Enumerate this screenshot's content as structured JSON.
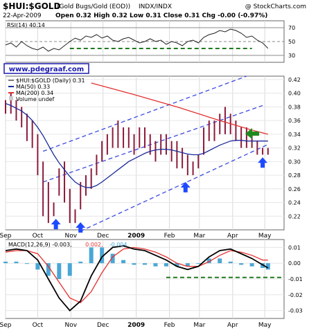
{
  "header": {
    "symbol": "$HUI:$GOLD",
    "description": "(Gold Bugs/Gold (EOD))",
    "exchange": "INDX/INDX",
    "copyright": "@ StockCharts.com",
    "date": "22-Apr-2009",
    "ohlc": "Open 0.32  High 0.32  Low 0.31  Close 0.31  Chg -0.00 (-0.97%)"
  },
  "watermark": "www.pdegraaf.com",
  "chart_data": [
    {
      "type": "line",
      "panel": "rsi",
      "title": "RSI(14) 40.14",
      "ylim": [
        20,
        80
      ],
      "yticks": [
        30,
        50,
        70
      ],
      "levels": [
        30,
        50,
        70
      ],
      "x": [
        0,
        5,
        10,
        15,
        20,
        25,
        30,
        35,
        40,
        45,
        50,
        55,
        60,
        65,
        70,
        75,
        80,
        85,
        90,
        95,
        100,
        105,
        110,
        115,
        120,
        125,
        130,
        135,
        140,
        145,
        150,
        155,
        160,
        165,
        170,
        175,
        180,
        185,
        190,
        195,
        200,
        205,
        210,
        215,
        220,
        225,
        230,
        235,
        240,
        245
      ],
      "values": [
        45,
        48,
        42,
        50,
        44,
        40,
        38,
        42,
        36,
        40,
        38,
        44,
        50,
        55,
        52,
        58,
        56,
        60,
        55,
        58,
        52,
        50,
        54,
        56,
        52,
        48,
        50,
        54,
        50,
        52,
        46,
        50,
        48,
        44,
        50,
        52,
        48,
        56,
        60,
        62,
        66,
        64,
        68,
        66,
        62,
        56,
        58,
        52,
        48,
        40.14
      ],
      "support_value": 40
    },
    {
      "type": "line",
      "panel": "price",
      "title": "$HUI:$GOLD (Daily) 0.31",
      "ylim": [
        0.2,
        0.425
      ],
      "yticks": [
        0.22,
        0.24,
        0.26,
        0.28,
        0.3,
        0.32,
        0.34,
        0.36,
        0.38,
        0.4,
        0.42
      ],
      "xtick_labels": [
        "Sep",
        "Oct",
        "Nov",
        "Dec",
        "2009",
        "Feb",
        "Mar",
        "Apr",
        "May"
      ],
      "xtick_positions": [
        0,
        30,
        61,
        91,
        122,
        153,
        181,
        212,
        242
      ],
      "legend": [
        "$HUI:$GOLD (Daily) 0.31",
        "MA(50) 0.33",
        "MA(200) 0.34",
        "Volume undef"
      ],
      "price_x": [
        0,
        5,
        10,
        15,
        20,
        25,
        30,
        35,
        40,
        45,
        50,
        55,
        60,
        65,
        70,
        75,
        80,
        85,
        90,
        95,
        100,
        105,
        110,
        115,
        120,
        125,
        130,
        135,
        140,
        145,
        150,
        155,
        160,
        165,
        170,
        175,
        180,
        185,
        190,
        195,
        200,
        205,
        210,
        215,
        220,
        225,
        230,
        235,
        240,
        245
      ],
      "price_high": [
        0.39,
        0.4,
        0.39,
        0.38,
        0.37,
        0.36,
        0.34,
        0.3,
        0.27,
        0.24,
        0.29,
        0.3,
        0.26,
        0.23,
        0.27,
        0.28,
        0.29,
        0.31,
        0.33,
        0.34,
        0.35,
        0.36,
        0.35,
        0.35,
        0.34,
        0.35,
        0.35,
        0.34,
        0.33,
        0.34,
        0.34,
        0.33,
        0.33,
        0.32,
        0.31,
        0.3,
        0.31,
        0.35,
        0.36,
        0.36,
        0.37,
        0.38,
        0.37,
        0.36,
        0.35,
        0.35,
        0.34,
        0.33,
        0.32,
        0.32
      ],
      "price_low": [
        0.37,
        0.37,
        0.36,
        0.35,
        0.33,
        0.32,
        0.28,
        0.22,
        0.21,
        0.22,
        0.25,
        0.24,
        0.21,
        0.21,
        0.23,
        0.25,
        0.26,
        0.28,
        0.3,
        0.31,
        0.32,
        0.32,
        0.32,
        0.32,
        0.31,
        0.32,
        0.32,
        0.31,
        0.3,
        0.31,
        0.31,
        0.3,
        0.29,
        0.29,
        0.28,
        0.28,
        0.29,
        0.31,
        0.33,
        0.33,
        0.34,
        0.34,
        0.34,
        0.33,
        0.32,
        0.32,
        0.32,
        0.31,
        0.31,
        0.31
      ],
      "ma50": [
        0.385,
        0.382,
        0.378,
        0.374,
        0.368,
        0.36,
        0.35,
        0.338,
        0.324,
        0.31,
        0.298,
        0.288,
        0.278,
        0.27,
        0.265,
        0.262,
        0.262,
        0.265,
        0.27,
        0.276,
        0.282,
        0.288,
        0.294,
        0.3,
        0.304,
        0.308,
        0.312,
        0.315,
        0.317,
        0.318,
        0.318,
        0.317,
        0.315,
        0.313,
        0.311,
        0.31,
        0.31,
        0.312,
        0.316,
        0.32,
        0.324,
        0.327,
        0.33,
        0.331,
        0.331,
        0.33,
        0.33,
        0.33,
        0.33,
        0.33
      ],
      "ma200_x": [
        80,
        120,
        160,
        200,
        230,
        245
      ],
      "ma200": [
        0.415,
        0.398,
        0.38,
        0.36,
        0.346,
        0.34
      ],
      "channel_upper": {
        "x": [
          35,
          225
        ],
        "y": [
          0.315,
          0.425
        ]
      },
      "channel_middle": {
        "x": [
          35,
          240
        ],
        "y": [
          0.27,
          0.382
        ]
      },
      "channel_lower": {
        "x": [
          70,
          245
        ],
        "y": [
          0.198,
          0.325
        ]
      }
    },
    {
      "type": "bar",
      "panel": "macd",
      "title": "MACD(12,26,9) -0.003, 0.002, -0.004",
      "legend": [
        "MACD(12,26,9) -0.003,",
        "0.002,",
        "-0.004"
      ],
      "ylim": [
        -0.035,
        0.015
      ],
      "yticks": [
        0.01,
        0.0,
        -0.01,
        -0.02,
        -0.03
      ],
      "xtick_labels": [
        "Sep",
        "Oct",
        "Nov",
        "Dec",
        "2009",
        "Feb",
        "Mar",
        "Apr",
        "May"
      ],
      "xtick_positions": [
        0,
        30,
        61,
        91,
        122,
        153,
        181,
        212,
        242
      ],
      "x": [
        0,
        10,
        20,
        30,
        40,
        50,
        60,
        70,
        80,
        90,
        100,
        110,
        120,
        130,
        140,
        150,
        160,
        170,
        180,
        190,
        200,
        210,
        220,
        230,
        240,
        245
      ],
      "macd": [
        0.008,
        0.009,
        0.008,
        0.002,
        -0.01,
        -0.022,
        -0.03,
        -0.024,
        -0.008,
        0.004,
        0.01,
        0.011,
        0.009,
        0.008,
        0.005,
        0.002,
        -0.002,
        -0.004,
        -0.002,
        0.004,
        0.008,
        0.009,
        0.006,
        0.003,
        -0.001,
        -0.003
      ],
      "signal": [
        0.007,
        0.008,
        0.008,
        0.006,
        -0.002,
        -0.012,
        -0.022,
        -0.025,
        -0.018,
        -0.006,
        0.004,
        0.009,
        0.01,
        0.009,
        0.007,
        0.004,
        0.0,
        -0.002,
        -0.002,
        0.001,
        0.005,
        0.008,
        0.007,
        0.005,
        0.002,
        0.002
      ],
      "histogram": [
        0.001,
        0.001,
        0.0,
        -0.004,
        -0.008,
        -0.01,
        -0.008,
        0.001,
        0.01,
        0.01,
        0.006,
        0.002,
        -0.001,
        -0.001,
        -0.002,
        -0.002,
        -0.002,
        -0.002,
        0.0,
        0.003,
        0.003,
        0.001,
        -0.001,
        -0.002,
        -0.003,
        -0.004
      ],
      "support_value": -0.009
    }
  ],
  "colors": {
    "price": "#8b1a3a",
    "ma50": "#1a2a9a",
    "ma200": "#e43030",
    "channel": "#3a4ae0",
    "support": "#1f7a1f",
    "histogram": "#4aa6d6",
    "signal": "#e43030",
    "arrow_blue": "#1e49ff",
    "arrow_green": "#1f8a1f"
  }
}
